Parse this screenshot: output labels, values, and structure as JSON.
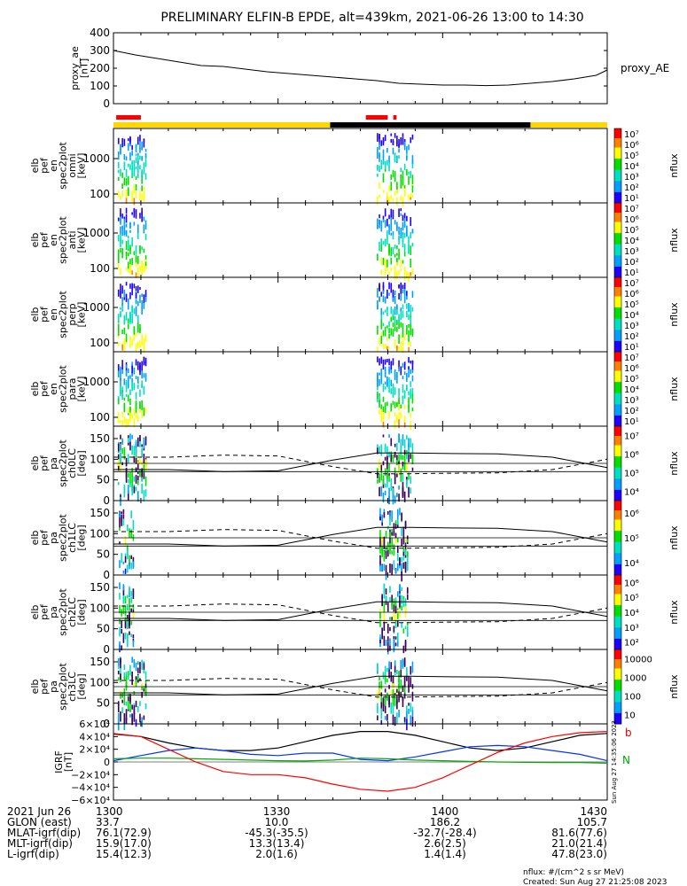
{
  "title": "PRELIMINARY ELFIN-B EPDE, alt=439km, 2021-06-26 13:00 to 14:30",
  "colors": {
    "flag_red": "#ff0000",
    "flag_yellow": "#ffd700",
    "flag_black": "#000000",
    "bx": "#000000",
    "by": "#0033ff",
    "bz": "#00aa00",
    "bt": "#dd0000"
  },
  "chart_data": [
    {
      "type": "line",
      "name": "proxy_ae",
      "ylabel": "proxy_ae\n[nT]",
      "legend": "proxy_AE",
      "yticks": [
        "0",
        "100",
        "200",
        "300",
        "400"
      ],
      "ylim": [
        0,
        400
      ],
      "x": [
        0,
        4,
        8,
        12,
        16,
        20,
        24,
        28,
        32,
        36,
        40,
        44,
        48,
        52,
        56,
        60,
        64,
        68,
        72,
        76,
        80,
        84,
        88,
        90
      ],
      "values": [
        300,
        275,
        255,
        235,
        215,
        210,
        195,
        180,
        170,
        160,
        150,
        140,
        130,
        115,
        110,
        105,
        105,
        102,
        105,
        115,
        125,
        140,
        160,
        190
      ]
    },
    {
      "type": "bar",
      "name": "flags",
      "segments": [
        {
          "start": 0,
          "end": 90,
          "color": "yellow",
          "row": "bottom"
        },
        {
          "start": 39.5,
          "end": 76,
          "color": "black",
          "row": "bottom"
        },
        {
          "start": 0.5,
          "end": 5,
          "color": "red",
          "row": "top"
        },
        {
          "start": 46,
          "end": 50,
          "color": "red",
          "row": "top"
        },
        {
          "start": 51,
          "end": 51.6,
          "color": "red",
          "row": "top"
        }
      ]
    },
    {
      "type": "heatmap",
      "name": "spec_omni",
      "ylabel": [
        "elb",
        "pef",
        "en",
        "spec2plot",
        "omni",
        "[keV]"
      ],
      "yticks": [
        "100",
        "1000"
      ],
      "colorbar_ticks": [
        "10¹",
        "10²",
        "10³",
        "10⁴",
        "10⁵",
        "10⁶",
        "10⁷"
      ],
      "colorbar_label": "nflux",
      "bursts": [
        {
          "start": 0.8,
          "end": 6.0
        },
        {
          "start": 48,
          "end": 54.5
        }
      ]
    },
    {
      "type": "heatmap",
      "name": "spec_anti",
      "ylabel": [
        "elb",
        "pef",
        "en",
        "spec2plot",
        "anti",
        "[keV]"
      ],
      "yticks": [
        "100",
        "1000"
      ],
      "colorbar_ticks": [
        "10¹",
        "10²",
        "10³",
        "10⁴",
        "10⁵",
        "10⁶",
        "10⁷"
      ],
      "colorbar_label": "nflux",
      "bursts": [
        {
          "start": 0.8,
          "end": 6.0
        },
        {
          "start": 48,
          "end": 54.5
        }
      ]
    },
    {
      "type": "heatmap",
      "name": "spec_perp",
      "ylabel": [
        "elb",
        "pef",
        "en",
        "spec2plot",
        "perp",
        "[keV]"
      ],
      "yticks": [
        "100",
        "1000"
      ],
      "colorbar_ticks": [
        "10¹",
        "10²",
        "10³",
        "10⁴",
        "10⁵",
        "10⁶",
        "10⁷"
      ],
      "colorbar_label": "nflux",
      "bursts": [
        {
          "start": 0.8,
          "end": 6.0
        },
        {
          "start": 48,
          "end": 54.5
        }
      ]
    },
    {
      "type": "heatmap",
      "name": "spec_para",
      "ylabel": [
        "elb",
        "pef",
        "en",
        "spec2plot",
        "para",
        "[keV]"
      ],
      "yticks": [
        "100",
        "1000"
      ],
      "colorbar_ticks": [
        "10¹",
        "10²",
        "10³",
        "10⁴",
        "10⁵",
        "10⁶",
        "10⁷"
      ],
      "colorbar_label": "nflux",
      "bursts": [
        {
          "start": 0.8,
          "end": 6.0
        },
        {
          "start": 48,
          "end": 54.5
        }
      ]
    },
    {
      "type": "heatmap",
      "name": "pa_ch0",
      "ylabel": [
        "elb",
        "pef",
        "pa",
        "spec2plot",
        "ch0LC",
        "[deg]"
      ],
      "yticks": [
        "0",
        "50",
        "100",
        "150"
      ],
      "ylim": [
        0,
        180
      ],
      "colorbar_ticks": [
        "10⁴",
        "10⁵",
        "10⁶",
        "10⁷"
      ],
      "colorbar_label": "nflux",
      "bursts": [
        {
          "start": 0.8,
          "end": 6.0
        },
        {
          "start": 48,
          "end": 54.5
        }
      ],
      "lc_solid": {
        "x": [
          0,
          10,
          20,
          30,
          40,
          48,
          54,
          60,
          70,
          80,
          90
        ],
        "y": [
          75,
          75,
          70,
          72,
          98,
          115,
          115,
          114,
          113,
          105,
          80
        ]
      },
      "lc_dashed": {
        "x": [
          0,
          10,
          20,
          30,
          40,
          48,
          54,
          60,
          70,
          80,
          90
        ],
        "y": [
          105,
          105,
          110,
          108,
          82,
          65,
          65,
          66,
          67,
          75,
          100
        ]
      },
      "lc_flat": [
        90,
        70
      ]
    },
    {
      "type": "heatmap",
      "name": "pa_ch1",
      "ylabel": [
        "elb",
        "pef",
        "pa",
        "spec2plot",
        "ch1LC",
        "[deg]"
      ],
      "yticks": [
        "0",
        "50",
        "100",
        "150"
      ],
      "ylim": [
        0,
        180
      ],
      "colorbar_ticks": [
        "10⁴",
        "10⁵",
        "10⁶"
      ],
      "colorbar_label": "nflux",
      "bursts": [
        {
          "start": 1.0,
          "end": 3.5
        },
        {
          "start": 48.5,
          "end": 53.5
        }
      ],
      "lc_solid": {
        "x": [
          0,
          10,
          20,
          30,
          40,
          48,
          54,
          60,
          70,
          80,
          90
        ],
        "y": [
          75,
          75,
          70,
          72,
          98,
          115,
          115,
          114,
          113,
          105,
          80
        ]
      },
      "lc_dashed": {
        "x": [
          0,
          10,
          20,
          30,
          40,
          48,
          54,
          60,
          70,
          80,
          90
        ],
        "y": [
          105,
          105,
          110,
          108,
          82,
          65,
          65,
          66,
          67,
          75,
          100
        ]
      },
      "lc_flat": [
        90,
        70
      ]
    },
    {
      "type": "heatmap",
      "name": "pa_ch2",
      "ylabel": [
        "elb",
        "pef",
        "pa",
        "spec2plot",
        "ch2LC",
        "[deg]"
      ],
      "yticks": [
        "0",
        "50",
        "100",
        "150"
      ],
      "ylim": [
        0,
        180
      ],
      "colorbar_ticks": [
        "10²",
        "10³",
        "10⁴",
        "10⁵",
        "10⁶"
      ],
      "colorbar_label": "nflux",
      "bursts": [
        {
          "start": 1.0,
          "end": 3.5
        },
        {
          "start": 48.5,
          "end": 53.5
        }
      ],
      "lc_solid": {
        "x": [
          0,
          10,
          20,
          30,
          40,
          48,
          54,
          60,
          70,
          80,
          90
        ],
        "y": [
          75,
          75,
          70,
          72,
          98,
          115,
          115,
          114,
          113,
          105,
          80
        ]
      },
      "lc_dashed": {
        "x": [
          0,
          10,
          20,
          30,
          40,
          48,
          54,
          60,
          70,
          80,
          90
        ],
        "y": [
          105,
          105,
          110,
          108,
          82,
          65,
          65,
          66,
          67,
          75,
          100
        ]
      },
      "lc_flat": [
        90,
        70
      ]
    },
    {
      "type": "heatmap",
      "name": "pa_ch3",
      "ylabel": [
        "elb",
        "pef",
        "pa",
        "spec2plot",
        "ch3LC",
        "[deg]"
      ],
      "yticks": [
        "0",
        "50",
        "100",
        "150"
      ],
      "ylim": [
        0,
        180
      ],
      "colorbar_ticks": [
        "10",
        "100",
        "1000",
        "10000"
      ],
      "colorbar_label": "nflux",
      "bursts": [
        {
          "start": 0.8,
          "end": 6.0
        },
        {
          "start": 48,
          "end": 54.5
        }
      ],
      "lc_solid": {
        "x": [
          0,
          10,
          20,
          30,
          40,
          48,
          54,
          60,
          70,
          80,
          90
        ],
        "y": [
          75,
          75,
          70,
          72,
          98,
          115,
          115,
          114,
          113,
          105,
          80
        ]
      },
      "lc_dashed": {
        "x": [
          0,
          10,
          20,
          30,
          40,
          48,
          54,
          60,
          70,
          80,
          90
        ],
        "y": [
          105,
          105,
          110,
          108,
          82,
          65,
          65,
          66,
          67,
          75,
          100
        ]
      },
      "lc_flat": [
        90,
        70
      ]
    },
    {
      "type": "line",
      "name": "igrf",
      "ylabel": "IGRF\n[nT]",
      "yticks": [
        "−6×10⁴",
        "−4×10⁴",
        "−2×10⁴",
        "0",
        "2×10⁴",
        "4×10⁴",
        "6×10⁴"
      ],
      "ylim": [
        -60000,
        60000
      ],
      "series": [
        {
          "color": "black",
          "x": [
            0,
            5,
            10,
            15,
            20,
            25,
            30,
            35,
            40,
            45,
            50,
            55,
            60,
            65,
            70,
            75,
            80,
            85,
            90
          ],
          "values": [
            44000,
            40000,
            30000,
            22000,
            18000,
            18000,
            22000,
            32000,
            42000,
            48000,
            48000,
            42000,
            32000,
            22000,
            18000,
            22000,
            32000,
            42000,
            45000
          ]
        },
        {
          "color": "blue",
          "x": [
            0,
            5,
            10,
            15,
            20,
            25,
            30,
            35,
            40,
            45,
            50,
            55,
            60,
            65,
            70,
            75,
            80,
            85,
            90
          ],
          "values": [
            2000,
            10000,
            18000,
            22000,
            18000,
            12000,
            10000,
            14000,
            14000,
            4000,
            2000,
            8000,
            16000,
            24000,
            26000,
            24000,
            18000,
            12000,
            2000
          ]
        },
        {
          "color": "green",
          "x": [
            0,
            5,
            10,
            15,
            20,
            25,
            30,
            35,
            40,
            45,
            50,
            55,
            60,
            65,
            70,
            75,
            80,
            85,
            90
          ],
          "values": [
            5000,
            6000,
            6000,
            5000,
            4000,
            3000,
            2000,
            1500,
            3000,
            6000,
            5000,
            3000,
            2000,
            1000,
            0,
            -500,
            -1000,
            -1000,
            -2000
          ]
        },
        {
          "color": "red",
          "x": [
            0,
            5,
            10,
            15,
            20,
            25,
            30,
            35,
            40,
            45,
            50,
            55,
            60,
            65,
            70,
            75,
            80,
            85,
            90
          ],
          "values": [
            45000,
            40000,
            20000,
            0,
            -15000,
            -20000,
            -20000,
            -25000,
            -35000,
            -43000,
            -46000,
            -40000,
            -25000,
            -5000,
            15000,
            30000,
            40000,
            46000,
            48000
          ]
        }
      ],
      "side_labels": [
        "b",
        "N"
      ]
    }
  ],
  "xaxis": {
    "ticks": [
      {
        "x": 0,
        "label": "1300"
      },
      {
        "x": 30,
        "label": "1330"
      },
      {
        "x": 60,
        "label": "1400"
      },
      {
        "x": 90,
        "label": "1430"
      }
    ]
  },
  "footer_rows": [
    {
      "label": "2021 Jun 26",
      "values": [
        "1300",
        "1330",
        "1400",
        "1430"
      ]
    },
    {
      "label": "GLON (east)",
      "values": [
        "33.7",
        "10.0",
        "186.2",
        "105.7"
      ]
    },
    {
      "label": "MLAT-igrf(dip)",
      "values": [
        "76.1(72.9)",
        "-45.3(-35.5)",
        "-32.7(-28.4)",
        "81.6(77.6)"
      ]
    },
    {
      "label": "MLT-igrf(dip)",
      "values": [
        "15.9(17.0)",
        "13.3(13.4)",
        "2.6(2.5)",
        "21.0(21.4)"
      ]
    },
    {
      "label": "L-igrf(dip)",
      "values": [
        "15.4(12.3)",
        "2.0(1.6)",
        "1.4(1.4)",
        "47.8(23.0)"
      ]
    }
  ],
  "side_note": "Sun Aug 27 14:35:06 2023",
  "footnote_units": "nflux: #/(cm^2 s sr MeV)",
  "footnote_created": "Created: Sun Aug 27 21:25:08 2023"
}
